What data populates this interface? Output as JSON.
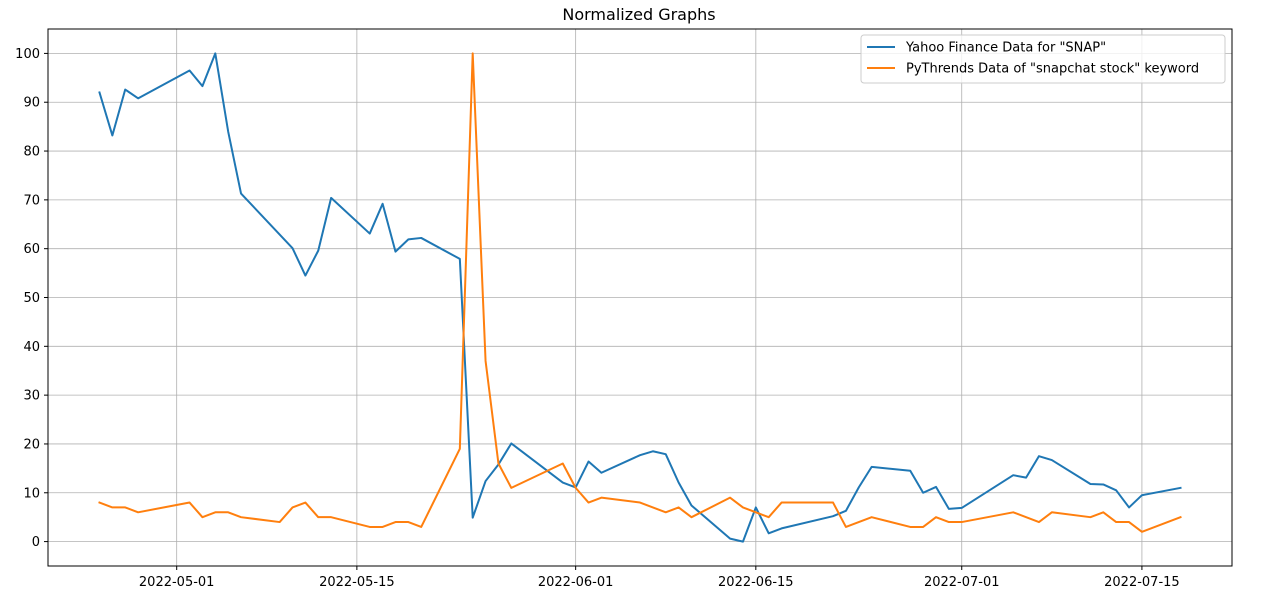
{
  "chart_data": {
    "type": "line",
    "title": "Normalized Graphs",
    "xlabel": "",
    "ylabel": "",
    "x_type": "date",
    "xlim": [
      "2022-04-21",
      "2022-07-22"
    ],
    "ylim": [
      -5,
      105
    ],
    "y_ticks": [
      0,
      10,
      20,
      30,
      40,
      50,
      60,
      70,
      80,
      90,
      100
    ],
    "x_ticks": [
      "2022-05-01",
      "2022-05-15",
      "2022-06-01",
      "2022-06-15",
      "2022-07-01",
      "2022-07-15"
    ],
    "grid": true,
    "legend_position": "top-right",
    "series": [
      {
        "name": "Yahoo Finance Data for \"SNAP\"",
        "color": "#1f77b4",
        "points": [
          [
            "2022-04-25",
            92.0
          ],
          [
            "2022-04-26",
            83.2
          ],
          [
            "2022-04-27",
            92.6
          ],
          [
            "2022-04-28",
            90.8
          ],
          [
            "2022-05-02",
            96.5
          ],
          [
            "2022-05-03",
            93.3
          ],
          [
            "2022-05-04",
            100.0
          ],
          [
            "2022-05-05",
            84.0
          ],
          [
            "2022-05-06",
            71.3
          ],
          [
            "2022-05-10",
            60.1
          ],
          [
            "2022-05-11",
            54.5
          ],
          [
            "2022-05-12",
            59.6
          ],
          [
            "2022-05-13",
            70.4
          ],
          [
            "2022-05-16",
            63.1
          ],
          [
            "2022-05-17",
            69.2
          ],
          [
            "2022-05-18",
            59.4
          ],
          [
            "2022-05-19",
            61.9
          ],
          [
            "2022-05-20",
            62.2
          ],
          [
            "2022-05-23",
            57.9
          ],
          [
            "2022-05-24",
            4.9
          ],
          [
            "2022-05-25",
            12.4
          ],
          [
            "2022-05-26",
            15.8
          ],
          [
            "2022-05-27",
            20.1
          ],
          [
            "2022-05-31",
            12.1
          ],
          [
            "2022-06-01",
            11.1
          ],
          [
            "2022-06-02",
            16.4
          ],
          [
            "2022-06-03",
            14.1
          ],
          [
            "2022-06-06",
            17.7
          ],
          [
            "2022-06-07",
            18.5
          ],
          [
            "2022-06-08",
            17.9
          ],
          [
            "2022-06-09",
            12.1
          ],
          [
            "2022-06-10",
            7.4
          ],
          [
            "2022-06-13",
            0.6
          ],
          [
            "2022-06-14",
            0.0
          ],
          [
            "2022-06-15",
            7.0
          ],
          [
            "2022-06-16",
            1.7
          ],
          [
            "2022-06-17",
            2.7
          ],
          [
            "2022-06-21",
            5.2
          ],
          [
            "2022-06-22",
            6.3
          ],
          [
            "2022-06-23",
            11.1
          ],
          [
            "2022-06-24",
            15.3
          ],
          [
            "2022-06-27",
            14.5
          ],
          [
            "2022-06-28",
            10.0
          ],
          [
            "2022-06-29",
            11.2
          ],
          [
            "2022-06-30",
            6.7
          ],
          [
            "2022-07-01",
            6.9
          ],
          [
            "2022-07-05",
            13.6
          ],
          [
            "2022-07-06",
            13.1
          ],
          [
            "2022-07-07",
            17.5
          ],
          [
            "2022-07-08",
            16.7
          ],
          [
            "2022-07-11",
            11.8
          ],
          [
            "2022-07-12",
            11.7
          ],
          [
            "2022-07-13",
            10.5
          ],
          [
            "2022-07-14",
            7.0
          ],
          [
            "2022-07-15",
            9.5
          ],
          [
            "2022-07-18",
            11.0
          ]
        ]
      },
      {
        "name": "PyThrends Data of \"snapchat stock\" keyword",
        "color": "#ff7f0e",
        "points": [
          [
            "2022-04-25",
            8
          ],
          [
            "2022-04-26",
            7
          ],
          [
            "2022-04-27",
            7
          ],
          [
            "2022-04-28",
            6
          ],
          [
            "2022-05-02",
            8
          ],
          [
            "2022-05-03",
            5
          ],
          [
            "2022-05-04",
            6
          ],
          [
            "2022-05-05",
            6
          ],
          [
            "2022-05-06",
            5
          ],
          [
            "2022-05-09",
            4
          ],
          [
            "2022-05-10",
            7
          ],
          [
            "2022-05-11",
            8
          ],
          [
            "2022-05-12",
            5
          ],
          [
            "2022-05-13",
            5
          ],
          [
            "2022-05-16",
            3
          ],
          [
            "2022-05-17",
            3
          ],
          [
            "2022-05-18",
            4
          ],
          [
            "2022-05-19",
            4
          ],
          [
            "2022-05-20",
            3
          ],
          [
            "2022-05-23",
            19
          ],
          [
            "2022-05-24",
            100
          ],
          [
            "2022-05-25",
            37
          ],
          [
            "2022-05-26",
            16
          ],
          [
            "2022-05-27",
            11
          ],
          [
            "2022-05-31",
            16
          ],
          [
            "2022-06-01",
            11
          ],
          [
            "2022-06-02",
            8
          ],
          [
            "2022-06-03",
            9
          ],
          [
            "2022-06-06",
            8
          ],
          [
            "2022-06-07",
            7
          ],
          [
            "2022-06-08",
            6
          ],
          [
            "2022-06-09",
            7
          ],
          [
            "2022-06-10",
            5
          ],
          [
            "2022-06-13",
            9
          ],
          [
            "2022-06-14",
            7
          ],
          [
            "2022-06-15",
            6
          ],
          [
            "2022-06-16",
            5
          ],
          [
            "2022-06-17",
            8
          ],
          [
            "2022-06-21",
            8
          ],
          [
            "2022-06-22",
            3
          ],
          [
            "2022-06-24",
            5
          ],
          [
            "2022-06-27",
            3
          ],
          [
            "2022-06-28",
            3
          ],
          [
            "2022-06-29",
            5
          ],
          [
            "2022-06-30",
            4
          ],
          [
            "2022-07-01",
            4
          ],
          [
            "2022-07-05",
            6
          ],
          [
            "2022-07-07",
            4
          ],
          [
            "2022-07-08",
            6
          ],
          [
            "2022-07-11",
            5
          ],
          [
            "2022-07-12",
            6
          ],
          [
            "2022-07-13",
            4
          ],
          [
            "2022-07-14",
            4
          ],
          [
            "2022-07-15",
            2
          ],
          [
            "2022-07-18",
            5
          ]
        ]
      }
    ]
  }
}
